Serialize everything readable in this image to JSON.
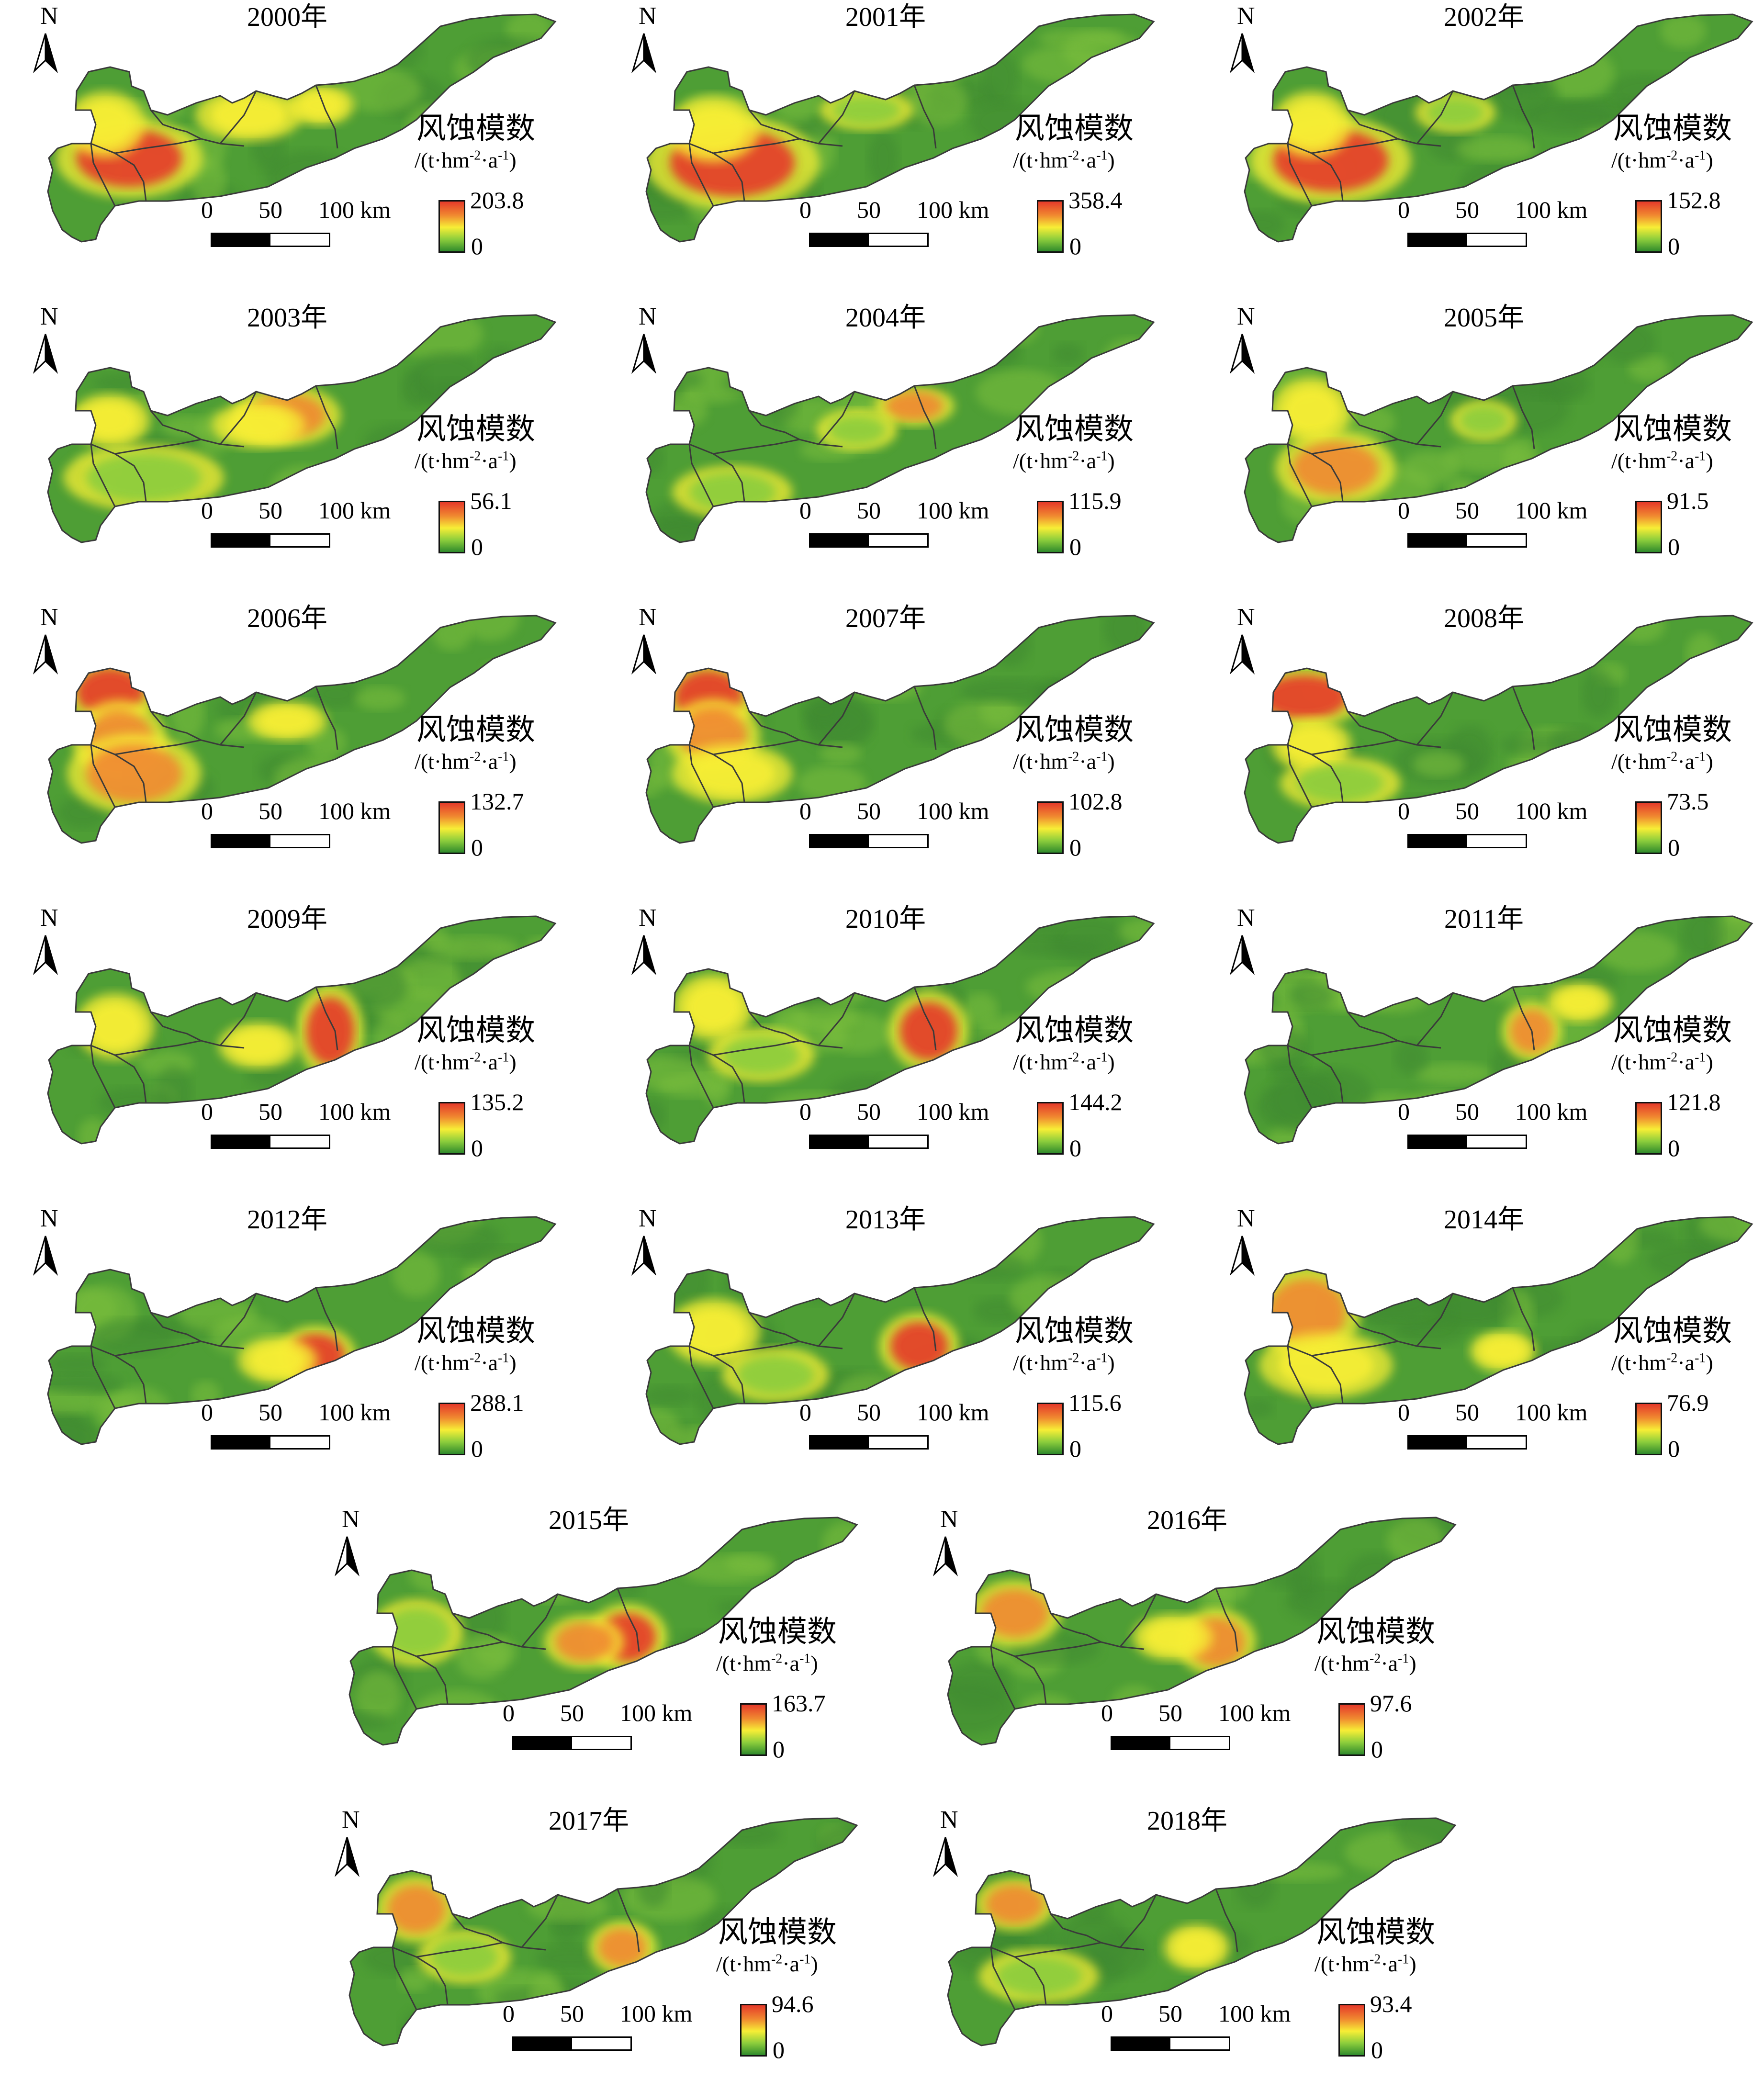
{
  "north_label": "N",
  "legend_title": "风蚀模数",
  "legend_unit": {
    "open": "/(t·hm",
    "sup1": "-2",
    "mid": "·a",
    "sup2": "-1",
    "close": ")"
  },
  "legend_min": "0",
  "scale_labels": [
    "0",
    "50",
    "100 km"
  ],
  "colors": {
    "low": "#2f8a2c",
    "mid_low": "#8ccd3c",
    "mid": "#f7ee36",
    "mid_high": "#f08a30",
    "high": "#e53a2a",
    "boundary": "#3a3a3a"
  },
  "panels": [
    {
      "year": "2000年",
      "max": "203.8"
    },
    {
      "year": "2001年",
      "max": "358.4"
    },
    {
      "year": "2002年",
      "max": "152.8"
    },
    {
      "year": "2003年",
      "max": "56.1"
    },
    {
      "year": "2004年",
      "max": "115.9"
    },
    {
      "year": "2005年",
      "max": "91.5"
    },
    {
      "year": "2006年",
      "max": "132.7"
    },
    {
      "year": "2007年",
      "max": "102.8"
    },
    {
      "year": "2008年",
      "max": "73.5"
    },
    {
      "year": "2009年",
      "max": "135.2"
    },
    {
      "year": "2010年",
      "max": "144.2"
    },
    {
      "year": "2011年",
      "max": "121.8"
    },
    {
      "year": "2012年",
      "max": "288.1"
    },
    {
      "year": "2013年",
      "max": "115.6"
    },
    {
      "year": "2014年",
      "max": "76.9"
    },
    {
      "year": "2015年",
      "max": "163.7"
    },
    {
      "year": "2016年",
      "max": "97.6"
    },
    {
      "year": "2017年",
      "max": "94.6"
    },
    {
      "year": "2018年",
      "max": "93.4"
    }
  ]
}
